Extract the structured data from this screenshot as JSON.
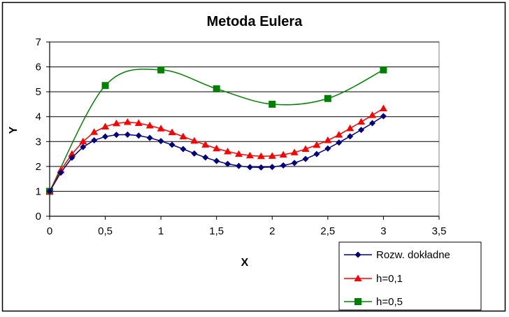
{
  "chart_data": {
    "type": "line",
    "title": "Metoda Eulera",
    "xlabel": "X",
    "ylabel": "Y",
    "xlim": [
      0,
      3.5
    ],
    "ylim": [
      0,
      7
    ],
    "xticks": [
      0,
      0.5,
      1,
      1.5,
      2,
      2.5,
      3,
      3.5
    ],
    "xtick_labels": [
      "0",
      "0,5",
      "1",
      "1,5",
      "2",
      "2,5",
      "3",
      "3,5"
    ],
    "yticks": [
      0,
      1,
      2,
      3,
      4,
      5,
      6,
      7
    ],
    "ytick_labels": [
      "0",
      "1",
      "2",
      "3",
      "4",
      "5",
      "6",
      "7"
    ],
    "grid": "horizontal",
    "legend_position": "bottom-right",
    "series": [
      {
        "name": "Rozw. dokładne",
        "color": "#000080",
        "marker": "diamond",
        "smooth": false,
        "x": [
          0,
          0.1,
          0.2,
          0.3,
          0.4,
          0.5,
          0.6,
          0.7,
          0.8,
          0.9,
          1.0,
          1.1,
          1.2,
          1.3,
          1.4,
          1.5,
          1.6,
          1.7,
          1.8,
          1.9,
          2.0,
          2.1,
          2.2,
          2.3,
          2.4,
          2.5,
          2.6,
          2.7,
          2.8,
          2.9,
          3.0
        ],
        "y": [
          1.0,
          1.75,
          2.35,
          2.78,
          3.05,
          3.2,
          3.27,
          3.28,
          3.24,
          3.15,
          3.02,
          2.87,
          2.7,
          2.52,
          2.36,
          2.22,
          2.1,
          2.02,
          1.97,
          1.96,
          1.98,
          2.04,
          2.14,
          2.3,
          2.5,
          2.72,
          2.96,
          3.21,
          3.47,
          3.74,
          4.02
        ]
      },
      {
        "name": "h=0,1",
        "color": "#FF0000",
        "marker": "triangle",
        "smooth": false,
        "x": [
          0,
          0.1,
          0.2,
          0.3,
          0.4,
          0.5,
          0.6,
          0.7,
          0.8,
          0.9,
          1.0,
          1.1,
          1.2,
          1.3,
          1.4,
          1.5,
          1.6,
          1.7,
          1.8,
          1.9,
          2.0,
          2.1,
          2.2,
          2.3,
          2.4,
          2.5,
          2.6,
          2.7,
          2.8,
          2.9,
          3.0
        ],
        "y": [
          1.0,
          1.85,
          2.5,
          3.0,
          3.38,
          3.6,
          3.73,
          3.78,
          3.74,
          3.64,
          3.52,
          3.37,
          3.2,
          3.03,
          2.87,
          2.72,
          2.6,
          2.5,
          2.44,
          2.41,
          2.42,
          2.47,
          2.56,
          2.7,
          2.86,
          3.05,
          3.27,
          3.53,
          3.79,
          4.06,
          4.33
        ]
      },
      {
        "name": "h=0,5",
        "color": "#008000",
        "marker": "square",
        "smooth": true,
        "x": [
          0,
          0.5,
          1.0,
          1.5,
          2.0,
          2.5,
          3.0
        ],
        "y": [
          1.0,
          5.25,
          5.88,
          5.12,
          4.5,
          4.73,
          5.88
        ]
      }
    ]
  }
}
